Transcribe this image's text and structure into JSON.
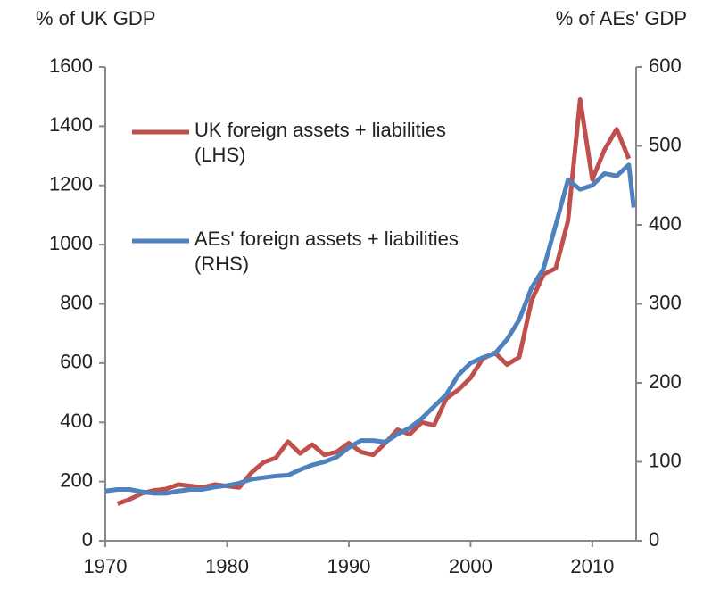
{
  "chart_data": {
    "type": "line",
    "y_label": "% of UK GDP",
    "y2_label": "% of AEs' GDP",
    "xlim": [
      1970,
      2013.6
    ],
    "xticks": [
      1970,
      1980,
      1990,
      2000,
      2010
    ],
    "ylim": [
      0,
      1600
    ],
    "yticks": [
      0,
      200,
      400,
      600,
      800,
      1000,
      1200,
      1400,
      1600
    ],
    "y2lim": [
      0,
      600
    ],
    "y2ticks": [
      0,
      100,
      200,
      300,
      400,
      500,
      600
    ],
    "series": [
      {
        "name": "UK foreign assets + liabilities (LHS)",
        "color": "#c0504d",
        "axis": "y",
        "x": [
          1971,
          1972,
          1973,
          1974,
          1975,
          1976,
          1977,
          1978,
          1979,
          1980,
          1981,
          1982,
          1983,
          1984,
          1985,
          1986,
          1987,
          1988,
          1989,
          1990,
          1991,
          1992,
          1993,
          1994,
          1995,
          1996,
          1997,
          1998,
          1999,
          2000,
          2001,
          2002,
          2003,
          2004,
          2005,
          2006,
          2007,
          2008,
          2009,
          2010,
          2011,
          2012,
          2013
        ],
        "values": [
          125,
          140,
          160,
          170,
          175,
          190,
          185,
          180,
          190,
          185,
          180,
          230,
          265,
          280,
          335,
          295,
          325,
          290,
          300,
          330,
          300,
          290,
          330,
          375,
          360,
          400,
          390,
          480,
          510,
          550,
          615,
          635,
          595,
          620,
          810,
          900,
          920,
          1080,
          1490,
          1220,
          1320,
          1390,
          1290
        ]
      },
      {
        "name": "AEs' foreign assets + liabilities (RHS)",
        "color": "#4f81bd",
        "axis": "y2",
        "x": [
          1970,
          1971,
          1972,
          1973,
          1974,
          1975,
          1976,
          1977,
          1978,
          1979,
          1980,
          1981,
          1982,
          1983,
          1984,
          1985,
          1986,
          1987,
          1988,
          1989,
          1990,
          1991,
          1992,
          1993,
          1994,
          1995,
          1996,
          1997,
          1998,
          1999,
          2000,
          2001,
          2002,
          2003,
          2004,
          2005,
          2006,
          2007,
          2008,
          2009,
          2010,
          2011,
          2012,
          2013,
          2013.4
        ],
        "values": [
          63,
          65,
          65,
          62,
          60,
          60,
          63,
          65,
          65,
          68,
          70,
          73,
          78,
          80,
          82,
          83,
          90,
          96,
          100,
          106,
          118,
          127,
          127,
          125,
          135,
          143,
          155,
          170,
          185,
          210,
          225,
          232,
          237,
          255,
          280,
          320,
          345,
          400,
          457,
          445,
          450,
          465,
          462,
          476,
          422
        ]
      }
    ]
  }
}
